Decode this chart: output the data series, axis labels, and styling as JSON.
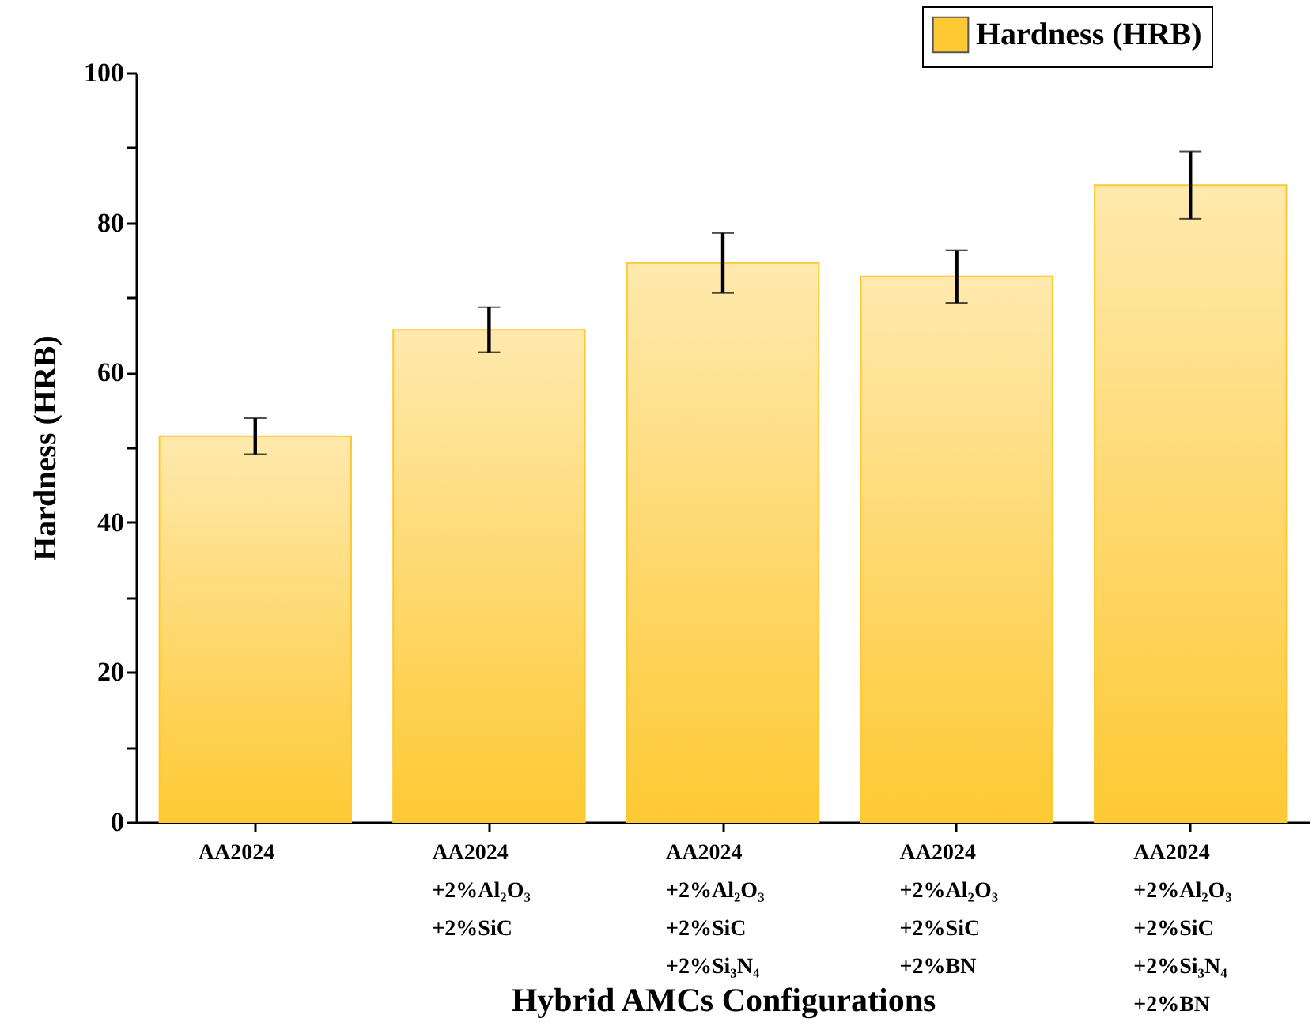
{
  "chart_data": {
    "type": "bar",
    "xlabel": "Hybrid AMCs Configurations",
    "ylabel": "Hardness (HRB)",
    "categories": [
      "AA2024",
      "AA2024\n+2%Al₂O₃\n+2%SiC",
      "AA2024\n+2%Al₂O₃\n+2%SiC\n+2%Si₃N₄",
      "AA2024\n+2%Al₂O₃\n+2%SiC\n+2%BN",
      "AA2024\n+2%Al₂O₃\n+2%SiC\n+2%Si₃N₄\n+2%BN"
    ],
    "series": [
      {
        "name": "Hardness (HRB)",
        "color": "#fec933",
        "values": [
          51.5,
          65.7,
          74.6,
          72.8,
          85.0
        ],
        "errors": [
          2.4,
          3.0,
          4.0,
          3.5,
          4.5
        ]
      }
    ],
    "ylim": [
      0,
      100
    ],
    "yticks": [
      0,
      {
        "value": 10,
        "label": null
      },
      20,
      {
        "value": 30,
        "label": null
      },
      40,
      {
        "value": 50,
        "label": null
      },
      60,
      {
        "value": 70,
        "label": null
      },
      80,
      {
        "value": 90,
        "label": null
      },
      100
    ],
    "grid": false,
    "legend": "top right"
  }
}
